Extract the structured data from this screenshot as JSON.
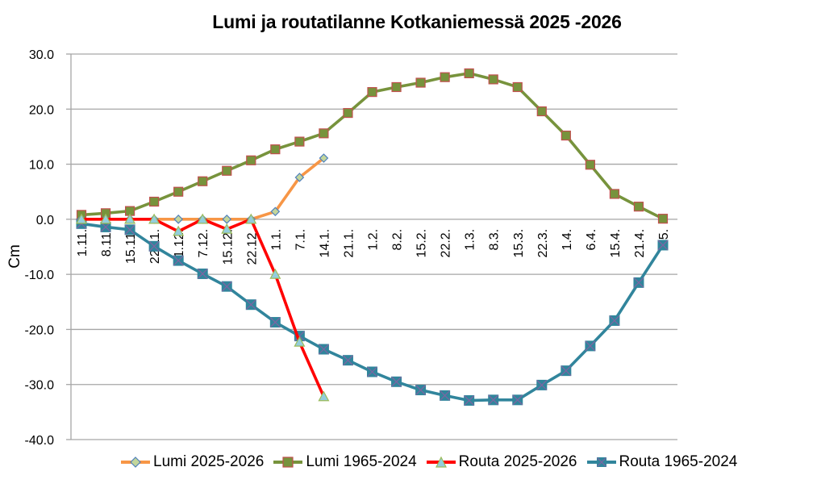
{
  "chart_data": {
    "type": "line",
    "title": "Lumi ja routatilanne Kotkaniemessä 2025  -2026",
    "xlabel": "",
    "ylabel": "Cm",
    "ylim": [
      -40,
      30
    ],
    "yticks": [
      30,
      20,
      10,
      0,
      -10,
      -20,
      -30,
      -40
    ],
    "ytick_labels": [
      "30.0",
      "20.0",
      "10.0",
      "0.0",
      "-10.0",
      "-20.0",
      "-30.0",
      "-40.0"
    ],
    "grid": true,
    "legend_position": "bottom",
    "categories": [
      "1.11.",
      "8.11.",
      "15.11.",
      "22.11.",
      "1.12.",
      "7.12.",
      "15.12.",
      "22.12.",
      "1.1.",
      "7.1.",
      "14.1.",
      "21.1.",
      "1.2.",
      "8.2.",
      "15.2.",
      "22.2.",
      "1.3.",
      "8.3.",
      "15.3.",
      "22.3.",
      "1.4.",
      "6.4.",
      "15.4.",
      "21.4.",
      "1.5."
    ],
    "series": [
      {
        "name": "Lumi 2025-2026",
        "color": "#F79646",
        "marker": "diamond",
        "marker_fill": "#C3D69B",
        "marker_stroke": "#4F81BD",
        "values": [
          0.0,
          0.0,
          0.0,
          0.0,
          0.0,
          0.0,
          0.0,
          0.0,
          1.4,
          7.6,
          11.1,
          null,
          null,
          null,
          null,
          null,
          null,
          null,
          null,
          null,
          null,
          null,
          null,
          null,
          null
        ]
      },
      {
        "name": "Lumi 1965-2024",
        "color": "#77933C",
        "marker": "square",
        "marker_fill": "#77933C",
        "marker_stroke": "#C0504D",
        "values": [
          0.8,
          1.1,
          1.5,
          3.2,
          5.0,
          6.9,
          8.8,
          10.7,
          12.7,
          14.1,
          15.6,
          19.3,
          23.1,
          24.0,
          24.8,
          25.8,
          26.5,
          25.4,
          24.0,
          19.6,
          15.2,
          9.9,
          4.6,
          2.3,
          0.1
        ]
      },
      {
        "name": "Routa 2025-2026",
        "color": "#FF0000",
        "marker": "triangle",
        "marker_fill": "#93CDDD",
        "marker_stroke": "#9BBB59",
        "values": [
          0.0,
          0.0,
          0.0,
          0.0,
          -2.2,
          0.0,
          -1.8,
          0.0,
          -10.0,
          -22.3,
          -32.2,
          null,
          null,
          null,
          null,
          null,
          null,
          null,
          null,
          null,
          null,
          null,
          null,
          null,
          null
        ]
      },
      {
        "name": "Routa 1965-2024",
        "color": "#31859C",
        "marker": "square-x",
        "marker_fill": "#31859C",
        "marker_stroke": "#8064A2",
        "values": [
          -0.8,
          -1.4,
          -1.9,
          -4.9,
          -7.5,
          -9.9,
          -12.2,
          -15.5,
          -18.7,
          -21.2,
          -23.6,
          -25.6,
          -27.7,
          -29.5,
          -31.0,
          -32.0,
          -32.9,
          -32.8,
          -32.8,
          -30.1,
          -27.5,
          -23.0,
          -18.4,
          -11.5,
          -4.7
        ]
      }
    ]
  },
  "legend": {
    "items": [
      {
        "label": "Lumi 2025-2026"
      },
      {
        "label": "Lumi 1965-2024"
      },
      {
        "label": "Routa 2025-2026"
      },
      {
        "label": "Routa 1965-2024"
      }
    ]
  }
}
